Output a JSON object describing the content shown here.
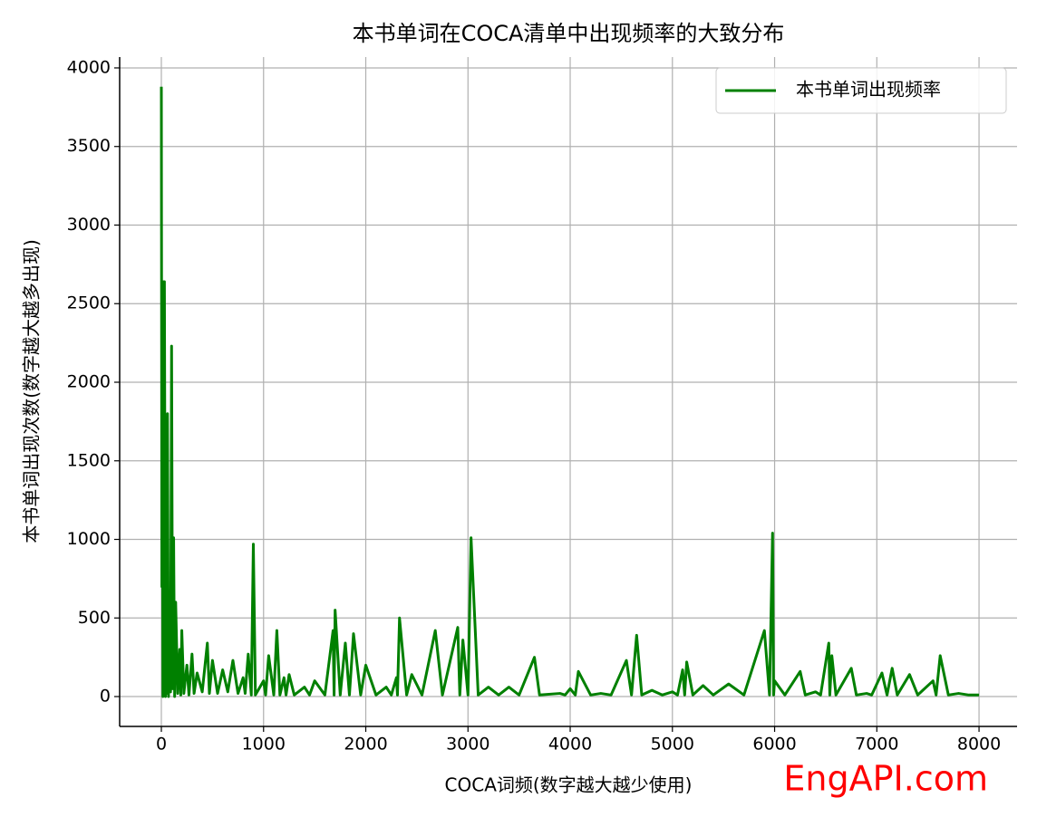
{
  "chart_data": {
    "type": "line",
    "title": "本书单词在COCA清单中出现频率的大致分布",
    "xlabel": "COCA词频(数字越大越少使用)",
    "ylabel": "本书单词出现次数(数字越大越多出现)",
    "watermark": "EngAPI.com",
    "x": [
      0,
      5,
      10,
      15,
      20,
      25,
      30,
      40,
      50,
      55,
      60,
      70,
      80,
      90,
      100,
      110,
      120,
      130,
      140,
      160,
      180,
      190,
      200,
      220,
      250,
      270,
      300,
      320,
      350,
      400,
      450,
      470,
      500,
      550,
      600,
      650,
      700,
      750,
      800,
      820,
      850,
      880,
      900,
      920,
      1000,
      1020,
      1050,
      1100,
      1130,
      1160,
      1200,
      1220,
      1250,
      1300,
      1400,
      1450,
      1500,
      1600,
      1680,
      1690,
      1700,
      1750,
      1800,
      1840,
      1880,
      1950,
      2000,
      2100,
      2200,
      2250,
      2300,
      2310,
      2330,
      2400,
      2450,
      2550,
      2680,
      2750,
      2900,
      2920,
      2950,
      3000,
      3030,
      3100,
      3200,
      3300,
      3400,
      3500,
      3650,
      3700,
      3900,
      3950,
      4000,
      4050,
      4080,
      4200,
      4300,
      4400,
      4550,
      4600,
      4650,
      4700,
      4800,
      4900,
      5000,
      5050,
      5100,
      5120,
      5140,
      5200,
      5300,
      5400,
      5550,
      5700,
      5900,
      5950,
      5980,
      5990,
      6000,
      6100,
      6250,
      6300,
      6400,
      6450,
      6530,
      6540,
      6560,
      6600,
      6750,
      6800,
      6900,
      6950,
      7050,
      7100,
      7150,
      7200,
      7320,
      7400,
      7550,
      7580,
      7620,
      7700,
      7800,
      7900,
      8000
    ],
    "series": [
      {
        "name": "本书单词出现频率",
        "color": "#008000",
        "values": [
          3880,
          700,
          1750,
          0,
          2640,
          380,
          2640,
          0,
          380,
          20,
          1800,
          0,
          500,
          30,
          2230,
          50,
          1010,
          0,
          600,
          20,
          300,
          10,
          420,
          20,
          200,
          10,
          270,
          20,
          150,
          30,
          340,
          20,
          230,
          20,
          170,
          30,
          230,
          20,
          120,
          20,
          270,
          10,
          970,
          10,
          100,
          10,
          260,
          10,
          420,
          10,
          120,
          10,
          140,
          10,
          60,
          10,
          100,
          10,
          420,
          10,
          550,
          10,
          340,
          10,
          400,
          10,
          200,
          10,
          60,
          10,
          120,
          10,
          500,
          10,
          140,
          10,
          420,
          10,
          440,
          10,
          360,
          10,
          1010,
          10,
          60,
          10,
          60,
          10,
          250,
          10,
          20,
          10,
          50,
          10,
          160,
          10,
          20,
          10,
          230,
          10,
          390,
          10,
          40,
          10,
          30,
          10,
          170,
          10,
          220,
          10,
          70,
          10,
          80,
          10,
          420,
          10,
          1040,
          10,
          100,
          10,
          160,
          10,
          30,
          10,
          340,
          10,
          260,
          10,
          180,
          10,
          20,
          10,
          150,
          10,
          180,
          10,
          140,
          10,
          100,
          10,
          260,
          10,
          20,
          10,
          10
        ]
      }
    ],
    "xlim": [
      -408,
      8372
    ],
    "xticks": [
      0,
      1000,
      2000,
      3000,
      4000,
      5000,
      6000,
      7000,
      8000
    ],
    "ylim": [
      -190,
      4069
    ],
    "yticks": [
      0,
      500,
      1000,
      1500,
      2000,
      2500,
      3000,
      3500,
      4000
    ],
    "grid": true,
    "legend": "upper right"
  }
}
